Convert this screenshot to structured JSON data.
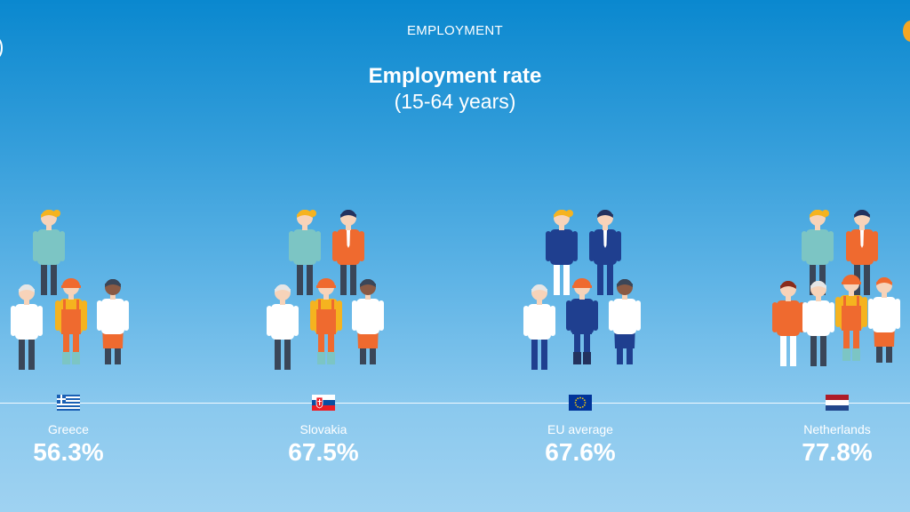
{
  "header": {
    "section": "EMPLOYMENT",
    "title": "Employment rate",
    "subtitle": "(15-64 years)"
  },
  "colors": {
    "teal": "#7cc5c4",
    "orange": "#ef6a2f",
    "yellow": "#f5b31f",
    "navy": "#1f3f8f",
    "dark": "#3a4658",
    "skin": "#f7d3b9",
    "eu_flag": "#003399",
    "eu_stars": "#ffcc00"
  },
  "chart_data": {
    "type": "bar",
    "title": "Employment rate",
    "subtitle": "(15-64 years)",
    "categories": [
      "Greece",
      "Slovakia",
      "EU average",
      "Netherlands"
    ],
    "values": [
      56.3,
      67.5,
      67.6,
      77.8
    ],
    "value_labels": [
      "56.3%",
      "67.5%",
      "67.6%",
      "77.8%"
    ],
    "unit": "%",
    "flags": [
      "greece-flag",
      "slovakia-flag",
      "eu-flag",
      "netherlands-flag"
    ],
    "highlight": "EU average"
  },
  "columns": [
    {
      "country": "Greece",
      "value": "56.3%"
    },
    {
      "country": "Slovakia",
      "value": "67.5%"
    },
    {
      "country": "EU average",
      "value": "67.6%"
    },
    {
      "country": "Netherlands",
      "value": "77.8%"
    }
  ]
}
